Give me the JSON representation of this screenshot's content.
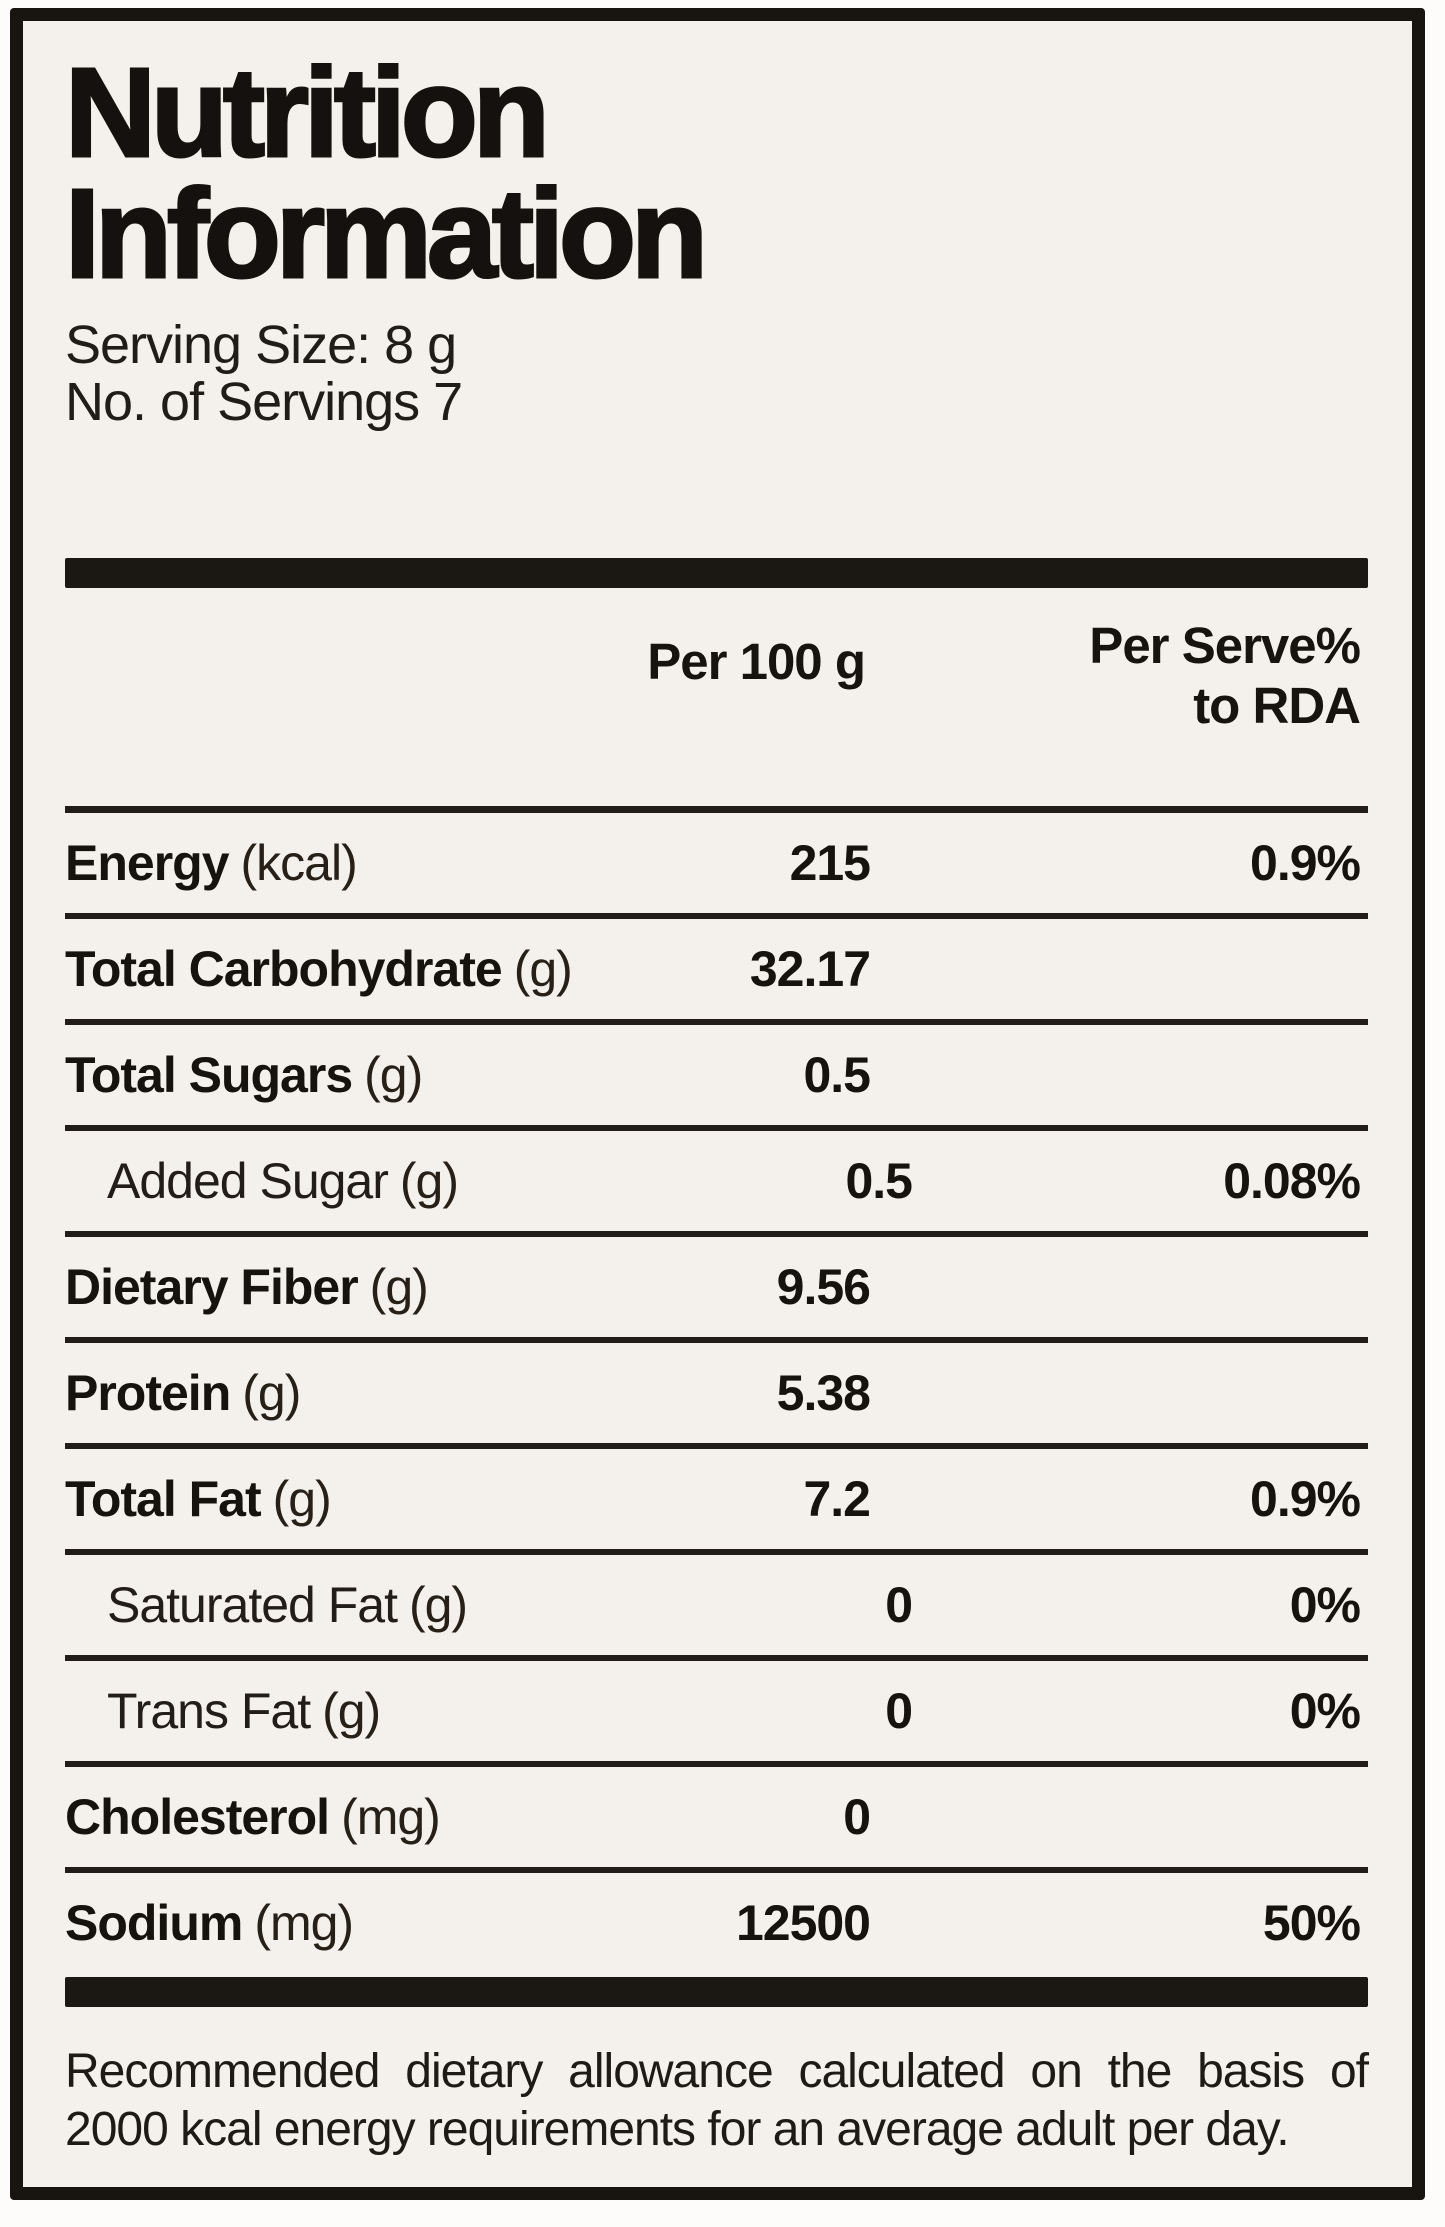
{
  "label": {
    "title_line1": "Nutrition",
    "title_line2": "Information",
    "serving_size": "Serving Size: 8 g",
    "servings": "No. of Servings 7",
    "columns": {
      "per100": "Per 100 g",
      "rda_line1": "Per Serve%",
      "rda_line2": "to RDA"
    },
    "rows": [
      {
        "name": "Energy",
        "unit": "(kcal)",
        "per100": "215",
        "rda": "0.9%"
      },
      {
        "name": "Total Carbohydrate",
        "unit": "(g)",
        "per100": "32.17",
        "rda": ""
      },
      {
        "name": "Total Sugars",
        "unit": "(g)",
        "per100": "0.5",
        "rda": ""
      },
      {
        "name": "Added Sugar",
        "unit": "(g)",
        "per100": "0.5",
        "rda": "0.08%"
      },
      {
        "name": "Dietary Fiber",
        "unit": "(g)",
        "per100": "9.56",
        "rda": ""
      },
      {
        "name": "Protein",
        "unit": "(g)",
        "per100": "5.38",
        "rda": ""
      },
      {
        "name": "Total Fat",
        "unit": "(g)",
        "per100": "7.2",
        "rda": "0.9%"
      },
      {
        "name": "Saturated Fat",
        "unit": "(g)",
        "per100": "0",
        "rda": "0%"
      },
      {
        "name": "Trans Fat",
        "unit": "(g)",
        "per100": "0",
        "rda": "0%"
      },
      {
        "name": "Cholesterol",
        "unit": "(mg)",
        "per100": "0",
        "rda": ""
      },
      {
        "name": "Sodium",
        "unit": "(mg)",
        "per100": "12500",
        "rda": "50%"
      }
    ],
    "footnote": "Recommended dietary allowance calculated on the basis of 2000 kcal energy requirements for an average adult per day.",
    "colors": {
      "paper": "#f4f1ec",
      "ink": "#16120e",
      "frame": "#181410"
    }
  }
}
